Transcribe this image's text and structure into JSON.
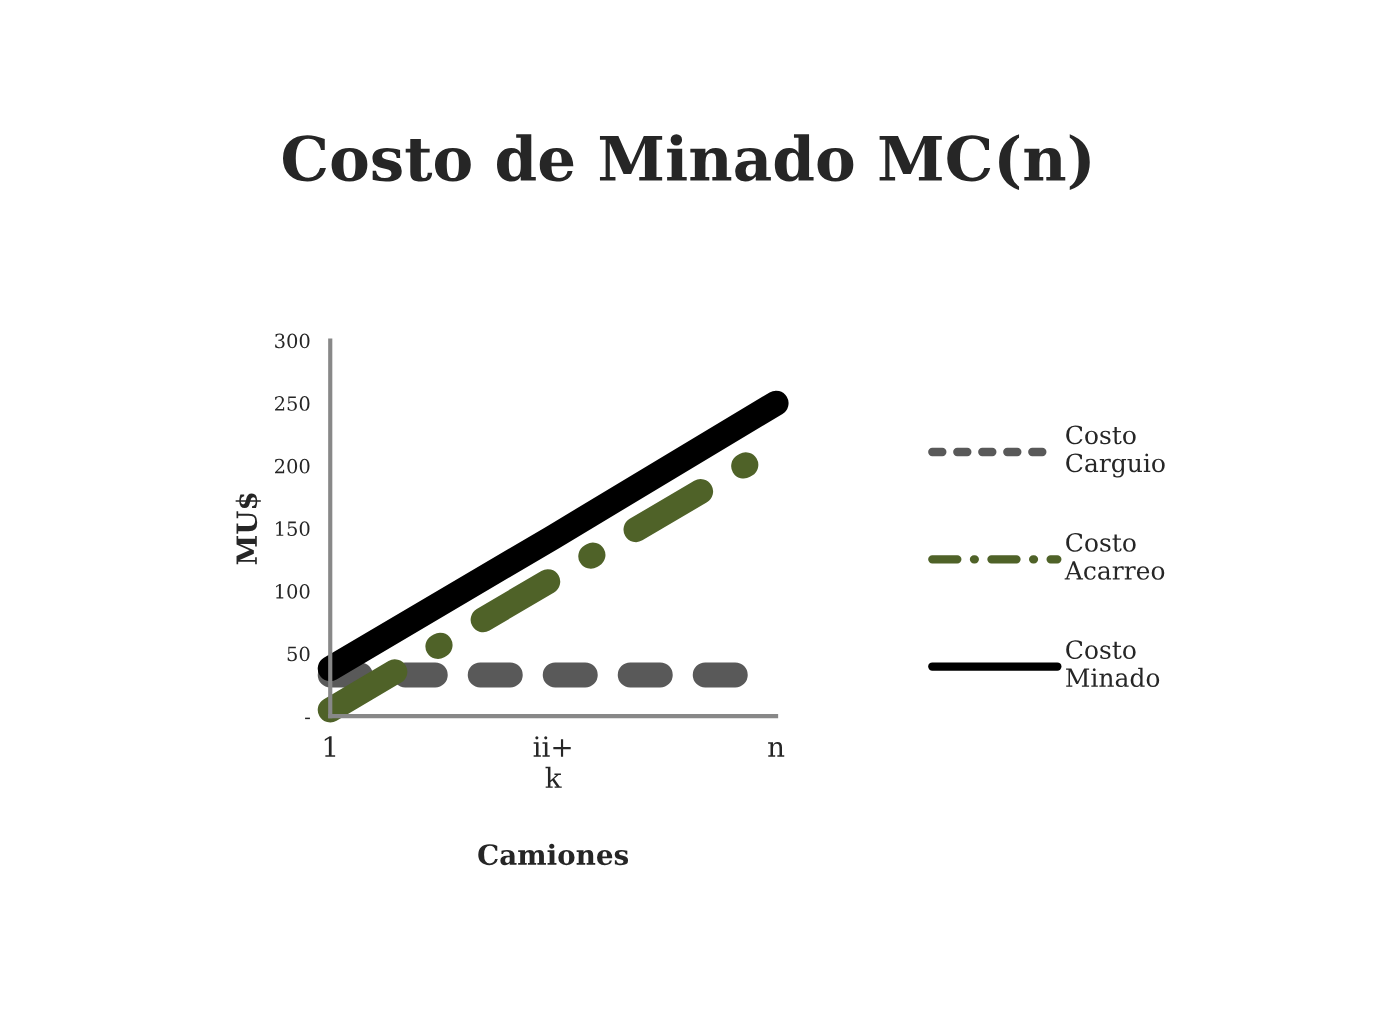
{
  "chart_data": {
    "type": "line",
    "title": "Costo de Minado MC(n)",
    "xlabel": "Camiones",
    "ylabel": "MU$",
    "categories": [
      "1",
      "ii+\nk",
      "n"
    ],
    "series": [
      {
        "name": "Costo\nCarguio",
        "color": "#595959",
        "line_style": "dashed",
        "values": [
          33,
          33,
          33
        ]
      },
      {
        "name": "Costo\nAcarreo",
        "color": "#4f6228",
        "line_style": "dashdot",
        "values": [
          5,
          110,
          215
        ]
      },
      {
        "name": "Costo\nMinado",
        "color": "#000000",
        "line_style": "solid",
        "values": [
          38,
          143,
          250
        ]
      }
    ],
    "ylim": [
      0,
      300
    ],
    "yticks": [
      {
        "value": 0,
        "label": "-"
      },
      50,
      100,
      150,
      200,
      250,
      300
    ],
    "grid": false,
    "legend": "right",
    "marker": "none"
  }
}
